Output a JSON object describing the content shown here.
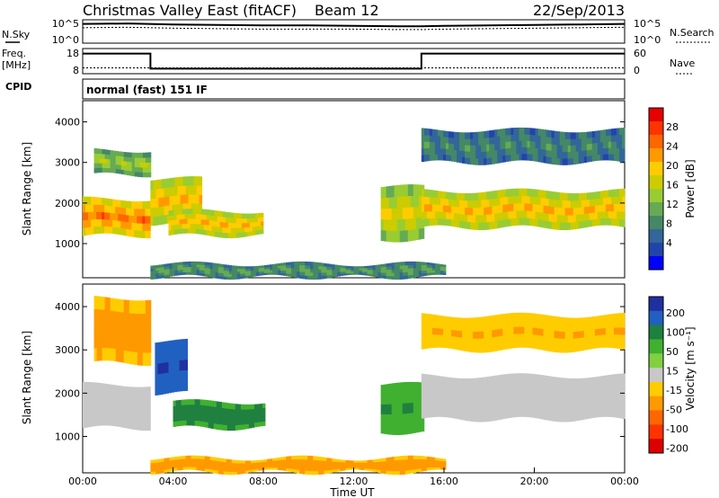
{
  "header": {
    "title": "Christmas Valley East (fitACF)",
    "beam": "Beam 12",
    "date": "22/Sep/2013"
  },
  "sky_panel": {
    "left_label": "N.Sky",
    "right_label": "N.Search",
    "left_ticks": [
      "10^5",
      "10^0"
    ],
    "right_ticks": [
      "10^5",
      "10^0"
    ]
  },
  "freq_panel": {
    "left_label_1": "Freq.",
    "left_label_2": "[MHz]",
    "right_label": "Nave",
    "left_ticks": [
      "18",
      "8"
    ],
    "right_ticks": [
      "60",
      "0"
    ]
  },
  "cpid": {
    "label": "CPID",
    "text": "normal (fast) 151 IF"
  },
  "x_axis": {
    "label": "Time UT",
    "ticks": [
      "00:00",
      "04:00",
      "08:00",
      "12:00",
      "16:00",
      "20:00",
      "00:00"
    ]
  },
  "power_colorbar": {
    "label": "Power [dB]",
    "ticks": [
      "28",
      "24",
      "20",
      "16",
      "12",
      "8",
      "4"
    ],
    "colors": [
      "#e60000",
      "#ff3300",
      "#ff6600",
      "#ff9900",
      "#ffcc00",
      "#cccc00",
      "#99cc33",
      "#66aa55",
      "#448866",
      "#336699",
      "#2244aa",
      "#0000ff"
    ]
  },
  "velocity_colorbar": {
    "label": "Velocity [m s⁻¹]",
    "ticks": [
      "200",
      "100",
      "50",
      "15",
      "-15",
      "-50",
      "-100",
      "-200"
    ],
    "colors": [
      "#2030a0",
      "#2060c0",
      "#208040",
      "#40b030",
      "#80d040",
      "#c8c8c8",
      "#ffcc00",
      "#ff9900",
      "#ff6600",
      "#ff3300",
      "#dd0000"
    ]
  },
  "range_axis": {
    "label": "Slant Range [km]",
    "ticks": [
      "4000",
      "3000",
      "2000",
      "1000"
    ]
  },
  "chart_data": [
    {
      "type": "line",
      "title": "N.Sky / N.Search",
      "x": [
        0,
        2,
        4,
        6,
        8,
        10,
        12,
        14,
        15,
        16,
        18,
        20,
        22,
        24
      ],
      "series": [
        {
          "name": "N.Sky",
          "values": [
            4.1,
            4.2,
            4.0,
            3.9,
            3.8,
            3.8,
            3.7,
            3.6,
            3.6,
            3.7,
            3.8,
            3.9,
            4.0,
            4.1
          ]
        },
        {
          "name": "N.Search",
          "values": [
            3.3,
            3.4,
            3.2,
            3.1,
            3.0,
            3.0,
            3.0,
            2.9,
            2.9,
            3.0,
            3.1,
            3.2,
            3.3,
            3.4
          ]
        }
      ],
      "xlim": [
        0,
        24
      ],
      "ylim": [
        0,
        5
      ],
      "yscale": "log10"
    },
    {
      "type": "line",
      "title": "Freq. / Nave",
      "x": [
        0,
        3,
        3,
        15,
        15,
        24
      ],
      "series": [
        {
          "name": "Freq. [MHz]",
          "values": [
            16,
            16,
            10,
            10,
            16,
            16
          ]
        },
        {
          "name": "Nave",
          "values": [
            14,
            14,
            14,
            14,
            14,
            14
          ]
        }
      ],
      "xlim": [
        0,
        24
      ],
      "ylim_left": [
        8,
        18
      ],
      "ylim_right": [
        0,
        60
      ]
    },
    {
      "type": "heatmap",
      "title": "Power [dB]",
      "xlabel": "Time UT",
      "ylabel": "Slant Range [km]",
      "xlim": [
        0,
        24
      ],
      "ylim": [
        180,
        4500
      ],
      "zlim": [
        0,
        30
      ],
      "regions": [
        {
          "t0": 0,
          "t1": 3,
          "r0": 1200,
          "r1": 2100,
          "z": 24
        },
        {
          "t0": 0.5,
          "t1": 3,
          "r0": 2700,
          "r1": 3300,
          "z": 14
        },
        {
          "t0": 3,
          "t1": 5.2,
          "r0": 1500,
          "r1": 2600,
          "z": 20
        },
        {
          "t0": 3.8,
          "t1": 8,
          "r0": 1200,
          "r1": 1800,
          "z": 20
        },
        {
          "t0": 13.2,
          "t1": 15,
          "r0": 1100,
          "r1": 2400,
          "z": 18
        },
        {
          "t0": 15,
          "t1": 24,
          "r0": 1400,
          "r1": 2300,
          "z": 20
        },
        {
          "t0": 15,
          "t1": 24,
          "r0": 3000,
          "r1": 3800,
          "z": 8
        },
        {
          "t0": 3,
          "t1": 16,
          "r0": 180,
          "r1": 500,
          "z": 10
        }
      ]
    },
    {
      "type": "heatmap",
      "title": "Velocity [m s⁻¹]",
      "xlabel": "Time UT",
      "ylabel": "Slant Range [km]",
      "xlim": [
        0,
        24
      ],
      "ylim": [
        180,
        4500
      ],
      "zlim": [
        -200,
        200
      ],
      "regions": [
        {
          "t0": 0,
          "t1": 3,
          "r0": 1200,
          "r1": 2200,
          "z": 0
        },
        {
          "t0": 0.5,
          "t1": 3,
          "r0": 2700,
          "r1": 4200,
          "z": -40
        },
        {
          "t0": 3.2,
          "t1": 4.6,
          "r0": 2000,
          "r1": 3200,
          "z": 150
        },
        {
          "t0": 4,
          "t1": 8,
          "r0": 1200,
          "r1": 1800,
          "z": 40
        },
        {
          "t0": 13.2,
          "t1": 15,
          "r0": 1100,
          "r1": 2200,
          "z": 30
        },
        {
          "t0": 15,
          "t1": 24,
          "r0": 1400,
          "r1": 2400,
          "z": 0
        },
        {
          "t0": 15,
          "t1": 24,
          "r0": 3000,
          "r1": 3800,
          "z": -30
        },
        {
          "t0": 3,
          "t1": 16,
          "r0": 180,
          "r1": 500,
          "z": -40
        }
      ]
    }
  ]
}
